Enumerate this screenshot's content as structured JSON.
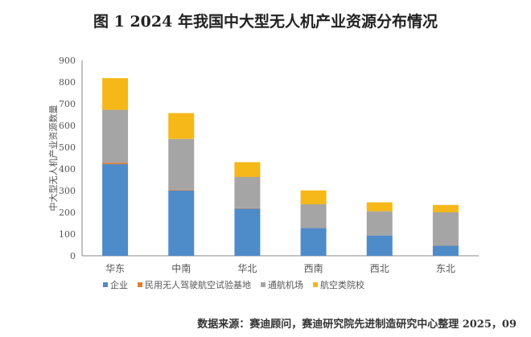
{
  "chart_data": {
    "type": "bar",
    "stacked": true,
    "title": "图 1  2024 年我国中大型无人机产业资源分布情况",
    "xlabel": "",
    "ylabel": "中大型无人机产业资源数量",
    "ylim": [
      0,
      900
    ],
    "yticks": [
      0,
      100,
      200,
      300,
      400,
      500,
      600,
      700,
      800,
      900
    ],
    "grid": false,
    "legend_position": "bottom",
    "categories": [
      "华东",
      "中南",
      "华北",
      "西南",
      "西北",
      "东北"
    ],
    "series": [
      {
        "name": "企业",
        "color": "#4e8bc9",
        "values": [
          422,
          301,
          217,
          128,
          94,
          47
        ]
      },
      {
        "name": "民用无人驾驶航空试验基地",
        "color": "#e67c2e",
        "values": [
          6,
          3,
          2,
          1,
          1,
          1
        ]
      },
      {
        "name": "通航机场",
        "color": "#a5a5a5",
        "values": [
          244,
          234,
          144,
          108,
          110,
          152
        ]
      },
      {
        "name": "航空类院校",
        "color": "#f5b818",
        "values": [
          146,
          119,
          68,
          64,
          41,
          34
        ]
      }
    ],
    "source": "数据来源：赛迪顾问，赛迪研究院先进制造研究中心整理 2025，09"
  }
}
